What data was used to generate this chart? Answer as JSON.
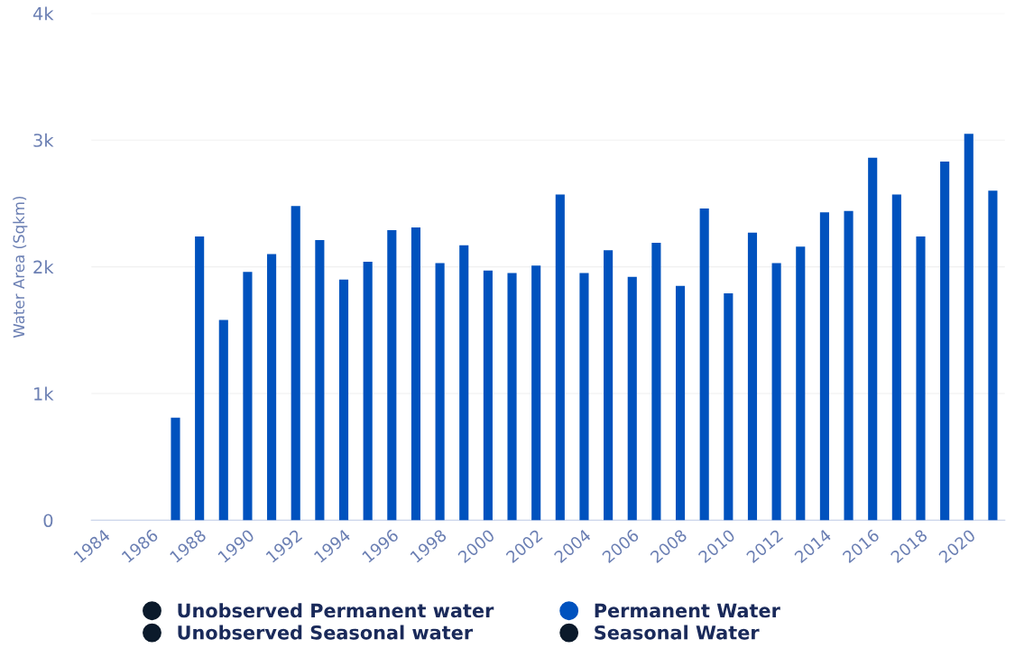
{
  "chart_data": {
    "type": "bar",
    "ylabel": "Water Area (Sqkm)",
    "categories": [
      "1984",
      null,
      "1986",
      null,
      "1988",
      null,
      "1990",
      null,
      "1992",
      null,
      "1994",
      null,
      "1996",
      null,
      "1998",
      null,
      "2000",
      null,
      "2002",
      null,
      "2004",
      null,
      "2006",
      null,
      "2008",
      null,
      "2010",
      null,
      "2012",
      null,
      "2014",
      null,
      "2016",
      null,
      "2018",
      null,
      "2020",
      null
    ],
    "series": [
      {
        "name": "Unobserved Permanent water",
        "color": "#0b1a2b",
        "values": [
          null,
          null,
          null,
          null,
          null,
          null,
          null,
          null,
          null,
          null,
          null,
          null,
          null,
          null,
          null,
          null,
          null,
          null,
          null,
          null,
          null,
          null,
          null,
          null,
          null,
          null,
          null,
          null,
          null,
          null,
          null,
          null,
          null,
          null,
          null,
          null,
          null,
          null
        ]
      },
      {
        "name": "Unobserved Seasonal water",
        "color": "#0b1a2b",
        "values": [
          null,
          null,
          null,
          null,
          null,
          null,
          null,
          null,
          null,
          null,
          null,
          null,
          null,
          null,
          null,
          null,
          null,
          null,
          null,
          null,
          null,
          null,
          null,
          null,
          null,
          null,
          null,
          null,
          null,
          null,
          null,
          null,
          null,
          null,
          null,
          null,
          null,
          null
        ]
      },
      {
        "name": "Permanent Water",
        "color": "#0052be",
        "values": [
          null,
          null,
          null,
          810,
          2240,
          1580,
          1960,
          2100,
          2480,
          2210,
          1900,
          2040,
          2290,
          2310,
          2030,
          2170,
          1970,
          1950,
          2010,
          2570,
          1950,
          2130,
          1920,
          2190,
          1850,
          2460,
          1790,
          2270,
          2030,
          2160,
          2430,
          2440,
          2860,
          2570,
          2240,
          2830,
          3050,
          2600
        ]
      },
      {
        "name": "Seasonal Water",
        "color": "#0b1a2b",
        "values": [
          null,
          null,
          null,
          null,
          null,
          null,
          null,
          null,
          null,
          null,
          null,
          null,
          null,
          null,
          null,
          null,
          null,
          null,
          null,
          null,
          null,
          null,
          null,
          null,
          null,
          null,
          null,
          null,
          null,
          null,
          null,
          null,
          null,
          null,
          null,
          null,
          null,
          null
        ]
      }
    ],
    "ylim": [
      0,
      4000
    ],
    "yticks": [
      {
        "value": 0,
        "label": "0"
      },
      {
        "value": 1000,
        "label": "1k"
      },
      {
        "value": 2000,
        "label": "2k"
      },
      {
        "value": 3000,
        "label": "3k"
      },
      {
        "value": 4000,
        "label": "4k"
      }
    ],
    "grid": "y",
    "legend": "bottom",
    "stacked": true
  }
}
